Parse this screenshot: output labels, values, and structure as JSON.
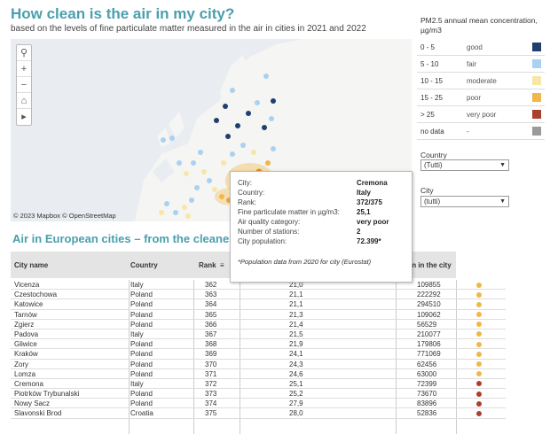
{
  "header": {
    "title": "How clean is the air in my city?",
    "subtitle": "based on the levels of fine particulate matter measured in the air in cities in 2021 and 2022"
  },
  "map": {
    "attribution": "© 2023 Mapbox © OpenStreetMap",
    "controls": [
      "search-icon",
      "zoom-in-icon",
      "zoom-out-icon",
      "home-icon",
      "play-icon"
    ]
  },
  "legend": {
    "title": "PM2.5 annual mean concentration, µg/m3",
    "items": [
      {
        "range": "0 - 5",
        "category": "good",
        "color": "#1f3f6e"
      },
      {
        "range": "5 - 10",
        "category": "fair",
        "color": "#a9d2f0"
      },
      {
        "range": "10 - 15",
        "category": "moderate",
        "color": "#f6e7a8"
      },
      {
        "range": "15 - 25",
        "category": "poor",
        "color": "#f0b84a"
      },
      {
        "range": "> 25",
        "category": "very poor",
        "color": "#a9412e"
      },
      {
        "range": "no data",
        "category": "-",
        "color": "#9a9a9a"
      }
    ]
  },
  "filters": {
    "country": {
      "label": "Country",
      "value": "(Tutti)"
    },
    "city": {
      "label": "City",
      "value": "(tutti)"
    }
  },
  "table": {
    "section_title": "Air in European cities – from the cleanest t",
    "headers": {
      "city": "City name",
      "country": "Country",
      "rank": "Rank",
      "population": "ation in the city"
    },
    "rows": [
      {
        "city": "Vicenza",
        "country": "Italy",
        "rank": "362",
        "value": "21,0",
        "population": "109855",
        "color": "#f0b84a"
      },
      {
        "city": "Czestochowa",
        "country": "Poland",
        "rank": "363",
        "value": "21,1",
        "population": "222292",
        "color": "#f0b84a"
      },
      {
        "city": "Katowice",
        "country": "Poland",
        "rank": "364",
        "value": "21,1",
        "population": "294510",
        "color": "#f0b84a"
      },
      {
        "city": "Tarnów",
        "country": "Poland",
        "rank": "365",
        "value": "21,3",
        "population": "109062",
        "color": "#f0b84a"
      },
      {
        "city": "Zgierz",
        "country": "Poland",
        "rank": "366",
        "value": "21,4",
        "population": "56529",
        "color": "#f0b84a"
      },
      {
        "city": "Padova",
        "country": "Italy",
        "rank": "367",
        "value": "21,5",
        "population": "210077",
        "color": "#f0b84a"
      },
      {
        "city": "Gliwice",
        "country": "Poland",
        "rank": "368",
        "value": "21,9",
        "population": "179806",
        "color": "#f0b84a"
      },
      {
        "city": "Kraków",
        "country": "Poland",
        "rank": "369",
        "value": "24,1",
        "population": "771069",
        "color": "#f0b84a"
      },
      {
        "city": "Zory",
        "country": "Poland",
        "rank": "370",
        "value": "24,3",
        "population": "62456",
        "color": "#f0b84a"
      },
      {
        "city": "Lomza",
        "country": "Poland",
        "rank": "371",
        "value": "24,6",
        "population": "63000",
        "color": "#f0b84a"
      },
      {
        "city": "Cremona",
        "country": "Italy",
        "rank": "372",
        "value": "25,1",
        "population": "72399",
        "color": "#a9412e"
      },
      {
        "city": "Piotrków Trybunalski",
        "country": "Poland",
        "rank": "373",
        "value": "25,2",
        "population": "73670",
        "color": "#a9412e"
      },
      {
        "city": "Nowy Sacz",
        "country": "Poland",
        "rank": "374",
        "value": "27,9",
        "population": "83896",
        "color": "#a9412e"
      },
      {
        "city": "Slavonski Brod",
        "country": "Croatia",
        "rank": "375",
        "value": "28,0",
        "population": "52836",
        "color": "#a9412e"
      }
    ]
  },
  "tooltip": {
    "rows": [
      {
        "key": "City:",
        "value": "Cremona"
      },
      {
        "key": "Country:",
        "value": "Italy"
      },
      {
        "key": "Rank:",
        "value": "372/375"
      },
      {
        "key": "Fine particulate matter in µg/m3:",
        "value": "25,1"
      },
      {
        "key": "Air quality category:",
        "value": "very poor"
      },
      {
        "key": "Number of stations:",
        "value": "2"
      },
      {
        "key": "City population:",
        "value": "72.399*"
      }
    ],
    "note": "*Population data from 2020 for city (Eurostat)"
  }
}
